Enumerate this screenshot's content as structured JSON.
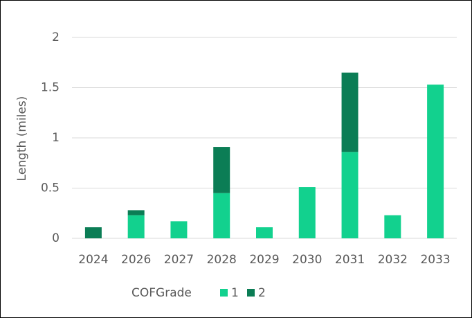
{
  "chart_data": {
    "type": "stacked_bar",
    "y_label": "Length (miles)",
    "legend_title": "COFGrade",
    "categories": [
      "2024",
      "2026",
      "2027",
      "2028",
      "2029",
      "2030",
      "2031",
      "2032",
      "2033"
    ],
    "series": [
      {
        "name": "1",
        "color": "#12d18e",
        "values": [
          0,
          0.23,
          0.17,
          0.45,
          0.11,
          0.51,
          0.86,
          0.23,
          1.53
        ]
      },
      {
        "name": "2",
        "color": "#0b7d55",
        "values": [
          0.11,
          0.05,
          0,
          0.46,
          0,
          0,
          0.79,
          0,
          0
        ]
      }
    ],
    "ylim": [
      0,
      2
    ],
    "yticks": [
      0,
      0.5,
      1,
      1.5,
      2
    ],
    "grid": true,
    "legend": "bottom"
  }
}
